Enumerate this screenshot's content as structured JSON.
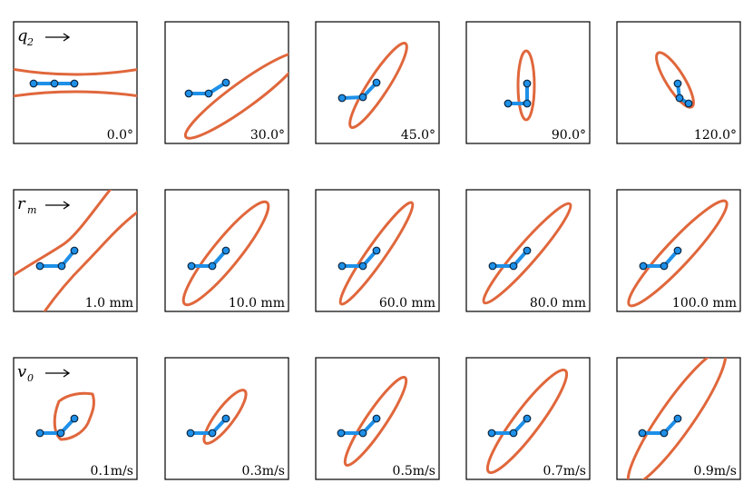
{
  "colors": {
    "ellipse": "#e0673c",
    "link": "#1e90e8",
    "joint_edge": "#0a2540",
    "frame": "#000000"
  },
  "rows": [
    {
      "symbol": "q",
      "subscript": "2",
      "panels": [
        {
          "label": "0.0°"
        },
        {
          "label": "30.0°"
        },
        {
          "label": "45.0°"
        },
        {
          "label": "90.0°"
        },
        {
          "label": "120.0°"
        }
      ]
    },
    {
      "symbol": "r",
      "subscript": "m",
      "panels": [
        {
          "label": "1.0 mm"
        },
        {
          "label": "10.0 mm"
        },
        {
          "label": "60.0 mm"
        },
        {
          "label": "80.0 mm"
        },
        {
          "label": "100.0 mm"
        }
      ]
    },
    {
      "symbol": "v",
      "subscript": "0",
      "panels": [
        {
          "label": "0.1m/s"
        },
        {
          "label": "0.3m/s"
        },
        {
          "label": "0.5m/s"
        },
        {
          "label": "0.7m/s"
        },
        {
          "label": "0.9m/s"
        }
      ]
    }
  ]
}
